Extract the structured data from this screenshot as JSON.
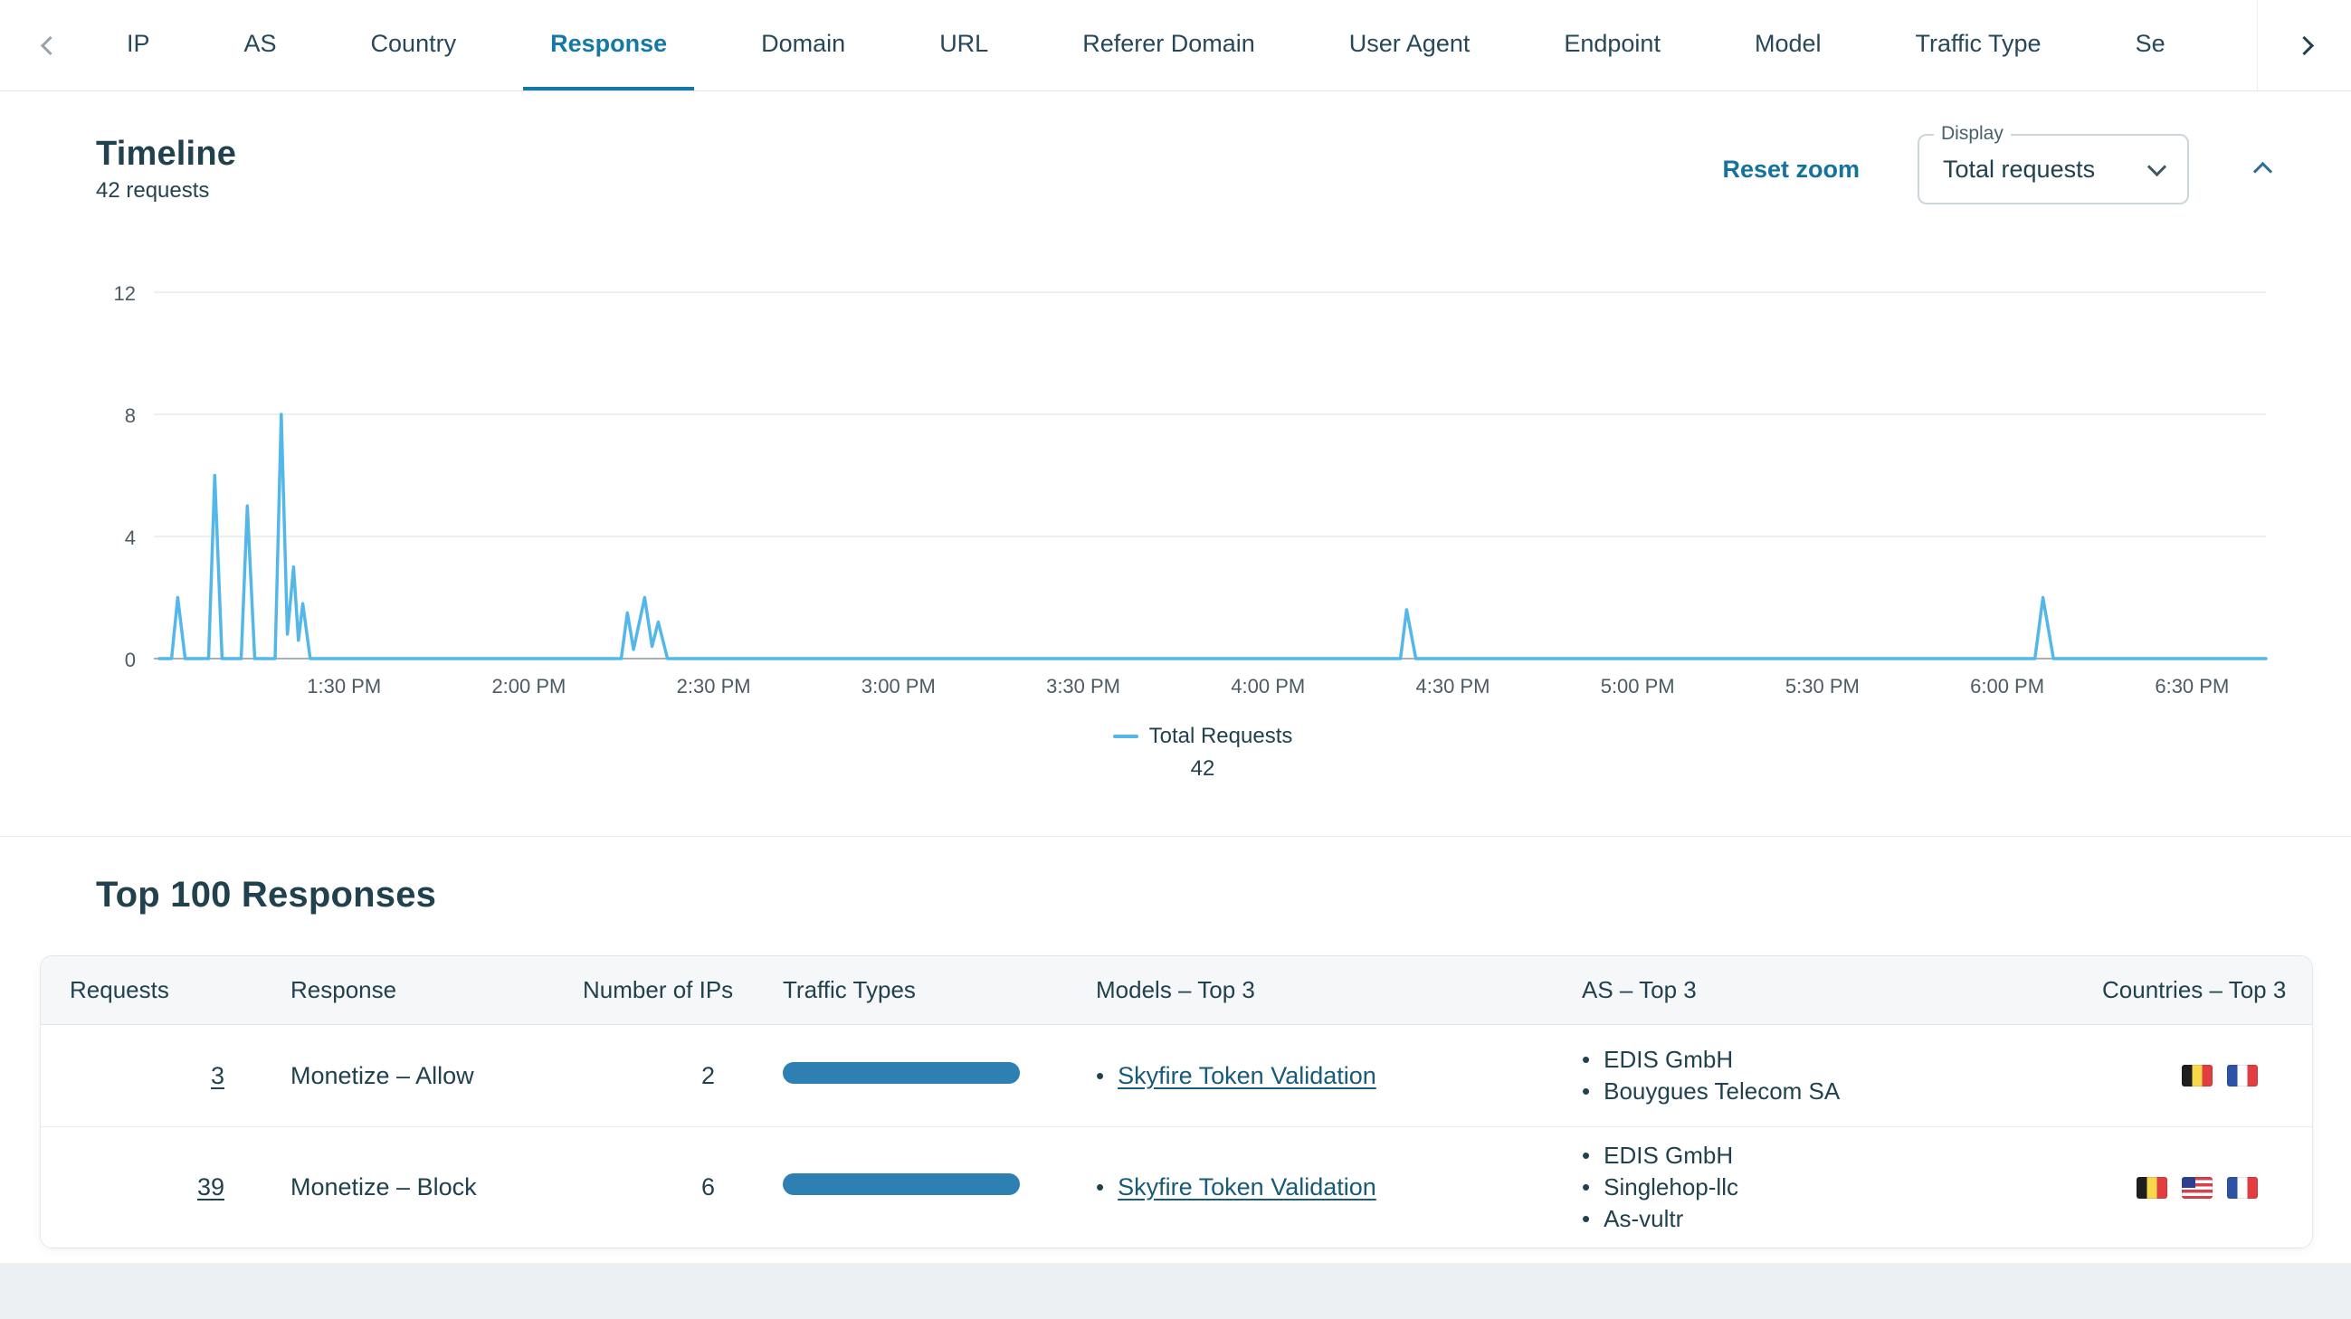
{
  "tab_bar": {
    "tabs": [
      {
        "label": "IP",
        "active": false
      },
      {
        "label": "AS",
        "active": false
      },
      {
        "label": "Country",
        "active": false
      },
      {
        "label": "Response",
        "active": true
      },
      {
        "label": "Domain",
        "active": false
      },
      {
        "label": "URL",
        "active": false
      },
      {
        "label": "Referer Domain",
        "active": false
      },
      {
        "label": "User Agent",
        "active": false
      },
      {
        "label": "Endpoint",
        "active": false
      },
      {
        "label": "Model",
        "active": false
      },
      {
        "label": "Traffic Type",
        "active": false
      },
      {
        "label": "Se",
        "active": false
      }
    ]
  },
  "timeline": {
    "title": "Timeline",
    "subtitle": "42 requests",
    "reset_zoom_label": "Reset zoom",
    "display_label": "Display",
    "display_value": "Total requests"
  },
  "chart_data": {
    "type": "line",
    "title": "Timeline",
    "x_domain": [
      0,
      342
    ],
    "x_domain_note": "minutes after 1:00 PM",
    "ylim": [
      0,
      12
    ],
    "y_ticks": [
      0,
      4,
      8,
      12
    ],
    "grid": true,
    "x_ticks": [
      {
        "t": 30,
        "label": "1:30 PM"
      },
      {
        "t": 60,
        "label": "2:00 PM"
      },
      {
        "t": 90,
        "label": "2:30 PM"
      },
      {
        "t": 120,
        "label": "3:00 PM"
      },
      {
        "t": 150,
        "label": "3:30 PM"
      },
      {
        "t": 180,
        "label": "4:00 PM"
      },
      {
        "t": 210,
        "label": "4:30 PM"
      },
      {
        "t": 240,
        "label": "5:00 PM"
      },
      {
        "t": 270,
        "label": "5:30 PM"
      },
      {
        "t": 300,
        "label": "6:00 PM"
      },
      {
        "t": 330,
        "label": "6:30 PM"
      }
    ],
    "series": [
      {
        "name": "Total Requests",
        "color": "#54b7ea",
        "points": [
          [
            0,
            0
          ],
          [
            2,
            0
          ],
          [
            3,
            2
          ],
          [
            4.2,
            0
          ],
          [
            8,
            0
          ],
          [
            9,
            6
          ],
          [
            10.2,
            0
          ],
          [
            13.3,
            0
          ],
          [
            14.3,
            5
          ],
          [
            15.5,
            0
          ],
          [
            18.8,
            0
          ],
          [
            19.8,
            8
          ],
          [
            20.8,
            0.8
          ],
          [
            21.8,
            3
          ],
          [
            22.6,
            0.6
          ],
          [
            23.3,
            1.8
          ],
          [
            24.5,
            0
          ],
          [
            75,
            0
          ],
          [
            76,
            1.5
          ],
          [
            77,
            0.3
          ],
          [
            78.8,
            2
          ],
          [
            80,
            0.4
          ],
          [
            81,
            1.2
          ],
          [
            82.5,
            0
          ],
          [
            201.5,
            0
          ],
          [
            202.5,
            1.6
          ],
          [
            204,
            0
          ],
          [
            304.5,
            0
          ],
          [
            305.8,
            2
          ],
          [
            307.5,
            0
          ],
          [
            342,
            0
          ]
        ]
      }
    ],
    "legend": {
      "label": "Total Requests",
      "value": "42",
      "position": "bottom"
    }
  },
  "table": {
    "title": "Top 100 Responses",
    "columns": [
      "Requests",
      "Response",
      "Number of IPs",
      "Traffic Types",
      "Models – Top 3",
      "AS – Top 3",
      "Countries – Top 3"
    ],
    "rows": [
      {
        "requests": "3",
        "response": "Monetize – Allow",
        "num_ips": "2",
        "traffic_bar_full": true,
        "models": [
          "Skyfire Token Validation"
        ],
        "as_top": [
          "EDIS GmbH",
          "Bouygues Telecom SA"
        ],
        "countries": [
          "BE",
          "FR"
        ]
      },
      {
        "requests": "39",
        "response": "Monetize – Block",
        "num_ips": "6",
        "traffic_bar_full": true,
        "models": [
          "Skyfire Token Validation"
        ],
        "as_top": [
          "EDIS GmbH",
          "Singlehop-llc",
          "As-vultr"
        ],
        "countries": [
          "BE",
          "US",
          "FR"
        ]
      }
    ]
  },
  "colors": {
    "accent": "#1579a8",
    "ink": "#21414f",
    "chart_line": "#54b7ea",
    "traffic_bar": "#2e80b2",
    "table_header_bg": "#f5f7f8",
    "page_bg": "#edf0f2"
  }
}
